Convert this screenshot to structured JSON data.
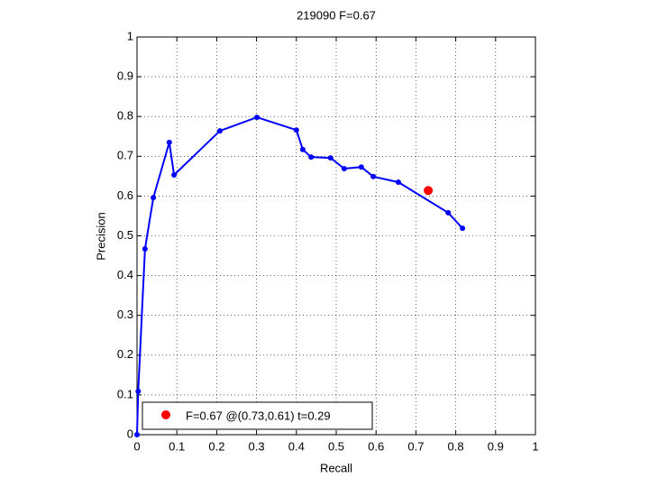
{
  "chart_data": {
    "type": "line",
    "title": "219090 F=0.67",
    "xlabel": "Recall",
    "ylabel": "Precision",
    "xlim": [
      0,
      1
    ],
    "ylim": [
      0,
      1
    ],
    "xticks": [
      0,
      0.1,
      0.2,
      0.3,
      0.4,
      0.5,
      0.6,
      0.7,
      0.8,
      0.9,
      1
    ],
    "yticks": [
      0,
      0.1,
      0.2,
      0.3,
      0.4,
      0.5,
      0.6,
      0.7,
      0.8,
      0.9,
      1
    ],
    "grid": true,
    "legend": "lower left",
    "series": [
      {
        "color": "#0000ff",
        "marker": "dot",
        "x": [
          0,
          0.003,
          0.02,
          0.041,
          0.081,
          0.093,
          0.208,
          0.301,
          0.4,
          0.416,
          0.437,
          0.486,
          0.52,
          0.563,
          0.593,
          0.656,
          0.781,
          0.817
        ],
        "values": [
          0,
          0.109,
          0.467,
          0.596,
          0.735,
          0.653,
          0.764,
          0.798,
          0.766,
          0.717,
          0.698,
          0.696,
          0.669,
          0.673,
          0.649,
          0.635,
          0.558,
          0.519
        ]
      },
      {
        "name": "F=0.67 @(0.73,0.61) t=0.29",
        "color": "#ff0000",
        "marker": "big-dot",
        "x": [
          0.731
        ],
        "values": [
          0.614
        ]
      }
    ]
  }
}
